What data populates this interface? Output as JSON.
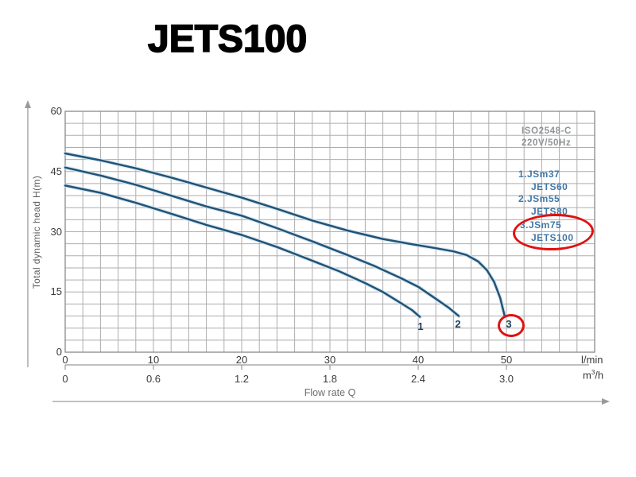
{
  "title": "JETS100",
  "info_box": {
    "line1": "ISO2548-C",
    "line2": "220V/50Hz"
  },
  "legend": [
    {
      "line1": "1.JSm37",
      "line2": "JETS60",
      "highlighted": false
    },
    {
      "line1": "2.JSm55",
      "line2": "JETS80",
      "highlighted": false
    },
    {
      "line1": "3.JSm75",
      "line2": "JETS100",
      "highlighted": true
    }
  ],
  "axes": {
    "y_label": "Total dynamic head H(m)",
    "x_label": "Flow rate Q",
    "x1_unit": "l/min",
    "x2_unit": {
      "base": "m",
      "sup": "3",
      "rest": "/h"
    }
  },
  "curve_labels": [
    "1",
    "2",
    "3"
  ],
  "chart_data": {
    "type": "line",
    "title": "JETS100",
    "xlabel": "Flow rate Q",
    "ylabel": "Total dynamic head H(m)",
    "x_units": [
      "l/min",
      "m3/h"
    ],
    "xlim": [
      0,
      60
    ],
    "ylim": [
      0,
      60
    ],
    "x_ticks_lmin": [
      0,
      10,
      20,
      30,
      40,
      50
    ],
    "x_ticks_m3h": [
      "0",
      "0.6",
      "1.2",
      "1.8",
      "2.4",
      "3.0"
    ],
    "y_ticks": [
      0,
      15,
      30,
      45,
      60
    ],
    "grid": {
      "on": true,
      "x_step_lmin": 2,
      "y_step_m": 3
    },
    "standard": "ISO2548-C",
    "power": "220V/50Hz",
    "series": [
      {
        "name": "JSm37 / JETS60",
        "label": "1",
        "highlighted": false,
        "x": [
          0,
          4,
          8,
          12,
          16,
          20,
          24,
          28,
          31,
          34,
          36,
          38,
          39.3,
          40.2
        ],
        "y": [
          41.5,
          39.7,
          37.2,
          34.5,
          31.7,
          29.2,
          26.2,
          22.8,
          20.2,
          17.2,
          15.0,
          12.3,
          10.5,
          8.8
        ]
      },
      {
        "name": "JSm55 / JETS80",
        "label": "2",
        "highlighted": false,
        "x": [
          0,
          4,
          8,
          12,
          16,
          20,
          24,
          28,
          32,
          35,
          38,
          40,
          42,
          43.5,
          44.6
        ],
        "y": [
          46.0,
          44.0,
          41.7,
          39.0,
          36.3,
          34.0,
          30.9,
          27.6,
          24.2,
          21.5,
          18.5,
          16.3,
          13.3,
          11.0,
          9.0
        ]
      },
      {
        "name": "JSm75 / JETS100",
        "label": "3",
        "highlighted": true,
        "x": [
          0,
          4,
          8,
          12,
          16,
          20,
          24,
          28,
          32,
          36,
          39,
          42,
          44,
          45.5,
          46.8,
          47.8,
          48.6,
          49.3,
          49.8
        ],
        "y": [
          49.5,
          47.8,
          45.8,
          43.5,
          41.0,
          38.5,
          35.7,
          32.8,
          30.3,
          28.2,
          27.0,
          25.9,
          25.1,
          24.2,
          22.6,
          20.4,
          17.5,
          13.5,
          9.0
        ]
      }
    ],
    "annotations": [
      {
        "type": "ellipse",
        "color": "#e01111",
        "target": "legend entry 3.JSm75 JETS100"
      },
      {
        "type": "ellipse",
        "color": "#e01111",
        "target": "curve end label 3"
      }
    ]
  },
  "colors": {
    "curve": "#215377",
    "curve_halo": "#cfe2ef",
    "legend_text": "#4377a6",
    "info_text": "#8f9496",
    "grid": "#adadad",
    "plot_border": "#8a8a8a",
    "axis_line": "#9a9a9a",
    "highlight": "#e01111",
    "tick_text": "#3a3a3a",
    "title_text": "#000000"
  }
}
